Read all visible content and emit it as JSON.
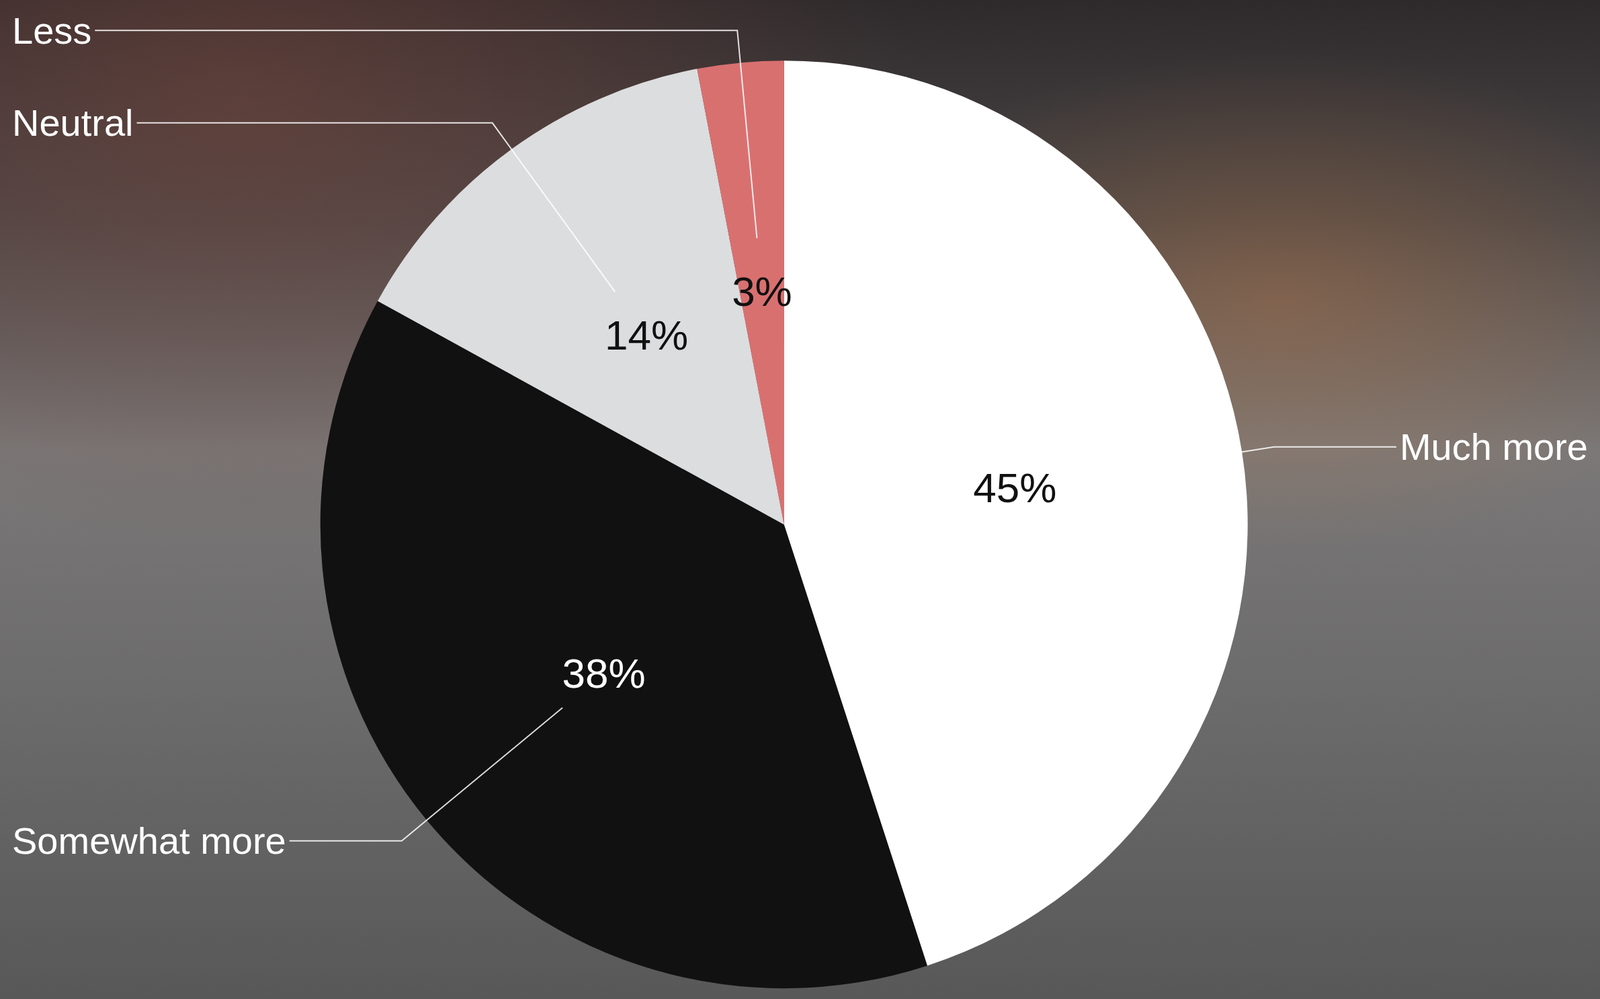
{
  "chart_data": {
    "type": "pie",
    "categories": [
      "Much more",
      "Somewhat more",
      "Neutral",
      "Less"
    ],
    "values": [
      45,
      38,
      14,
      3
    ],
    "value_labels": [
      "45%",
      "38%",
      "14%",
      "3%"
    ],
    "colors": [
      "#ffffff",
      "#111111",
      "#dcdddf",
      "#d97070"
    ],
    "data_labels": true
  }
}
